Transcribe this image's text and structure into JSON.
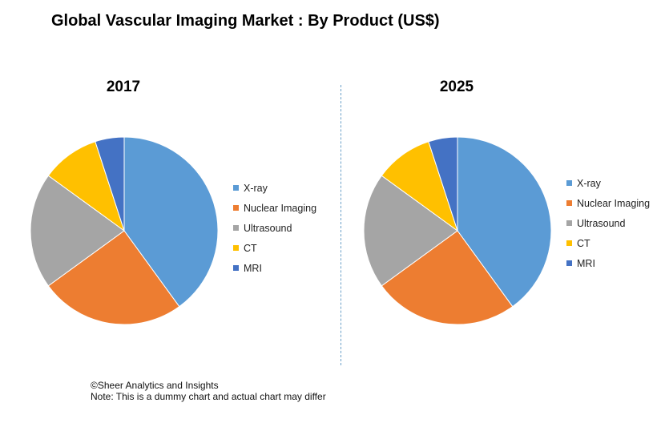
{
  "title": "Global Vascular Imaging Market : By Product (US$)",
  "chart_data": [
    {
      "type": "pie",
      "title": "2017",
      "categories": [
        "X-ray",
        "Nuclear Imaging",
        "Ultrasound",
        "CT",
        "MRI"
      ],
      "values": [
        40,
        25,
        20,
        10,
        5
      ],
      "colors": [
        "#5B9BD5",
        "#ED7D31",
        "#A5A5A5",
        "#FFC000",
        "#4472C4"
      ],
      "legend_position": "right"
    },
    {
      "type": "pie",
      "title": "2025",
      "categories": [
        "X-ray",
        "Nuclear Imaging",
        "Ultrasound",
        "CT",
        "MRI"
      ],
      "values": [
        40,
        25,
        20,
        10,
        5
      ],
      "colors": [
        "#5B9BD5",
        "#ED7D31",
        "#A5A5A5",
        "#FFC000",
        "#4472C4"
      ],
      "legend_position": "right"
    }
  ],
  "footer": {
    "copyright": "©Sheer Analytics and Insights",
    "note": "Note: This is a dummy chart and actual chart may differ"
  }
}
